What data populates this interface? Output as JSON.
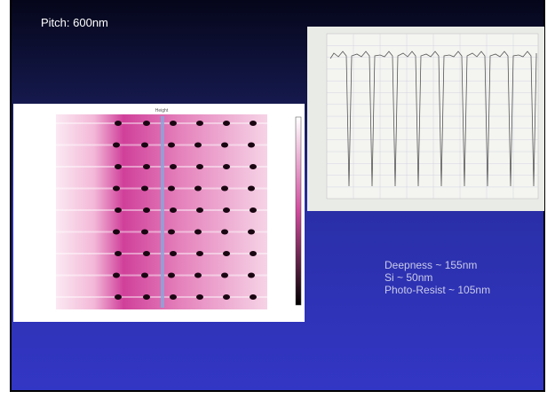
{
  "header": {
    "title": "Pitch: 600nm"
  },
  "notes": [
    "Deepness ~ 155nm",
    "Si ~ 50nm",
    "Photo-Resist ~ 105nm"
  ]
}
